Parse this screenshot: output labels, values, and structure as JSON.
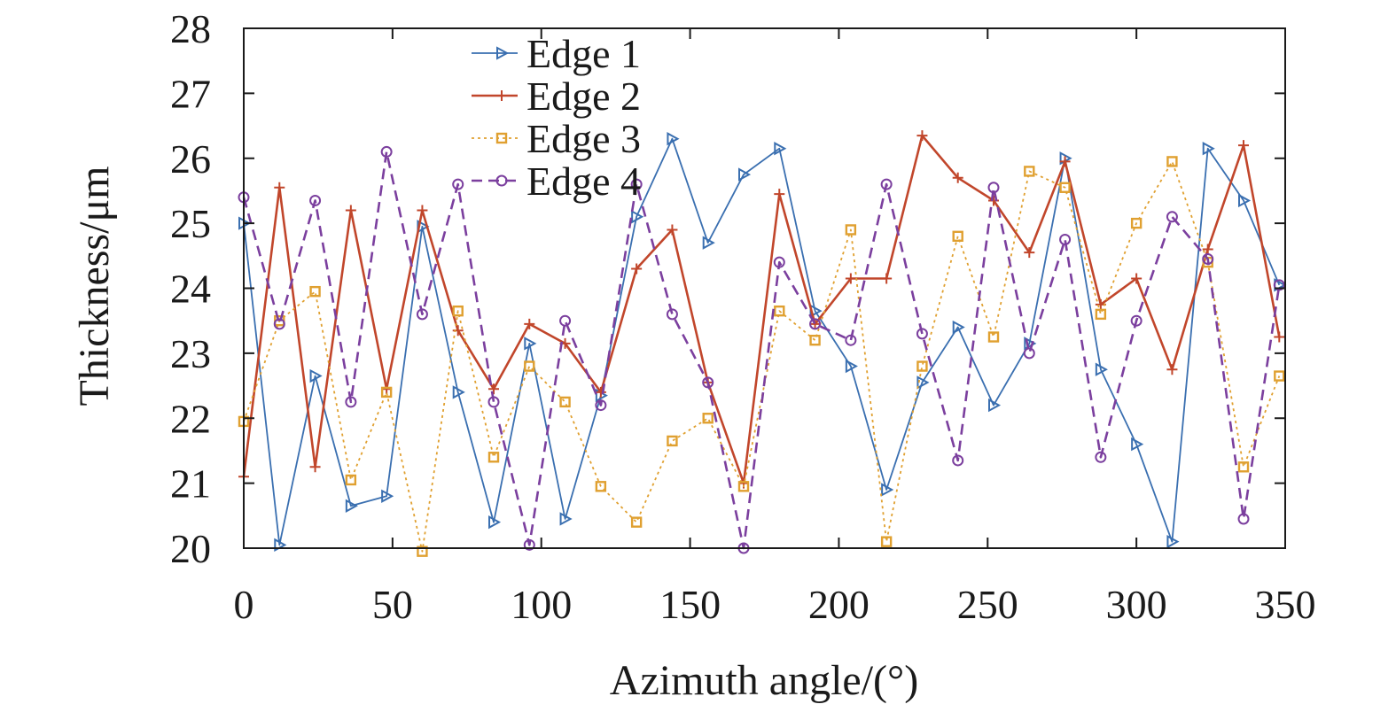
{
  "chart_data": {
    "type": "line",
    "title": "",
    "xlabel": "Azimuth angle/(°)",
    "ylabel": "Thickness/μm",
    "xlim": [
      0,
      350
    ],
    "ylim": [
      20,
      28
    ],
    "xticks": [
      0,
      50,
      100,
      150,
      200,
      250,
      300,
      350
    ],
    "yticks": [
      20,
      21,
      22,
      23,
      24,
      25,
      26,
      27,
      28
    ],
    "grid": false,
    "legend_position": "top-center",
    "x": [
      0,
      12,
      24,
      36,
      48,
      60,
      72,
      84,
      96,
      108,
      120,
      132,
      144,
      156,
      168,
      180,
      192,
      204,
      216,
      228,
      240,
      252,
      264,
      276,
      288,
      300,
      312,
      324,
      336,
      348
    ],
    "series": [
      {
        "name": "Edge 1",
        "color": "#3a6fb0",
        "marker": "triangle-right",
        "dash": "solid-thin",
        "values": [
          25.0,
          20.05,
          22.65,
          20.65,
          20.8,
          24.95,
          22.4,
          20.4,
          23.15,
          20.45,
          22.35,
          25.1,
          26.3,
          24.7,
          25.75,
          26.15,
          23.65,
          22.8,
          20.9,
          22.55,
          23.4,
          22.2,
          23.15,
          26.0,
          22.75,
          21.6,
          20.1,
          26.15,
          25.35,
          24.05
        ]
      },
      {
        "name": "Edge 2",
        "color": "#c1462b",
        "marker": "plus",
        "dash": "solid",
        "values": [
          21.1,
          25.55,
          21.25,
          25.2,
          22.45,
          25.2,
          23.35,
          22.45,
          23.45,
          23.15,
          22.4,
          24.3,
          24.9,
          22.55,
          21.0,
          25.45,
          23.45,
          24.15,
          24.15,
          26.35,
          25.7,
          25.35,
          24.55,
          25.95,
          23.75,
          24.15,
          22.75,
          24.6,
          26.2,
          23.25
        ]
      },
      {
        "name": "Edge 3",
        "color": "#e0a030",
        "marker": "square",
        "dash": "dotted",
        "values": [
          21.95,
          23.5,
          23.95,
          21.05,
          22.4,
          19.95,
          23.65,
          21.4,
          22.8,
          22.25,
          20.95,
          20.4,
          21.65,
          22.0,
          20.95,
          23.65,
          23.2,
          24.9,
          20.1,
          22.8,
          24.8,
          23.25,
          25.8,
          25.55,
          23.6,
          25.0,
          25.95,
          24.4,
          21.25,
          22.65
        ]
      },
      {
        "name": "Edge 4",
        "color": "#7b3f9e",
        "marker": "circle",
        "dash": "dashed",
        "values": [
          25.4,
          23.45,
          25.35,
          22.25,
          26.1,
          23.6,
          25.6,
          22.25,
          20.05,
          23.5,
          22.2,
          25.6,
          23.6,
          22.55,
          20.0,
          24.4,
          23.45,
          23.2,
          25.6,
          23.3,
          21.35,
          25.55,
          23.0,
          24.75,
          21.4,
          23.5,
          25.1,
          24.45,
          20.45,
          24.05
        ]
      }
    ]
  }
}
